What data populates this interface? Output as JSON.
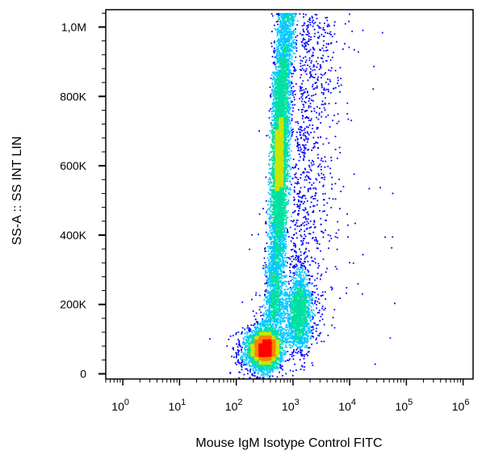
{
  "chart_data": {
    "type": "scatter",
    "subtype": "flow-cytometry-density-dot-plot",
    "xlabel": "Mouse IgM Isotype Control FITC",
    "ylabel": "SS-A :: SS INT LIN",
    "x_scale": "log",
    "xlim": [
      0.5,
      1500000
    ],
    "y_scale": "linear",
    "ylim": [
      -15000,
      1050000
    ],
    "grid": false,
    "legend": "none",
    "x_ticks": [
      {
        "value": 1,
        "base": "10",
        "exp": "0"
      },
      {
        "value": 10,
        "base": "10",
        "exp": "1"
      },
      {
        "value": 100,
        "base": "10",
        "exp": "2"
      },
      {
        "value": 1000,
        "base": "10",
        "exp": "3"
      },
      {
        "value": 10000,
        "base": "10",
        "exp": "4"
      },
      {
        "value": 100000,
        "base": "10",
        "exp": "5"
      },
      {
        "value": 1000000,
        "base": "10",
        "exp": "6"
      }
    ],
    "y_ticks": [
      {
        "value": 0,
        "label": "0"
      },
      {
        "value": 200000,
        "label": "200K"
      },
      {
        "value": 400000,
        "label": "400K"
      },
      {
        "value": 600000,
        "label": "600K"
      },
      {
        "value": 800000,
        "label": "800K"
      },
      {
        "value": 1000000,
        "label": "1,0M"
      }
    ],
    "populations": [
      {
        "x_center": 300,
        "y_center": 70000,
        "density": "highest",
        "peak_color": "#ff0000"
      },
      {
        "x_center": 550,
        "y_center": 650000,
        "density": "high",
        "peak_color": "#c8e600"
      },
      {
        "x_center": 1300,
        "y_center": 170000,
        "density": "medium",
        "peak_color": "#00c8ff"
      }
    ],
    "color_scale": [
      "#0000ff",
      "#00c8ff",
      "#00e0a0",
      "#c8e600",
      "#ff8000",
      "#ff0000"
    ]
  }
}
